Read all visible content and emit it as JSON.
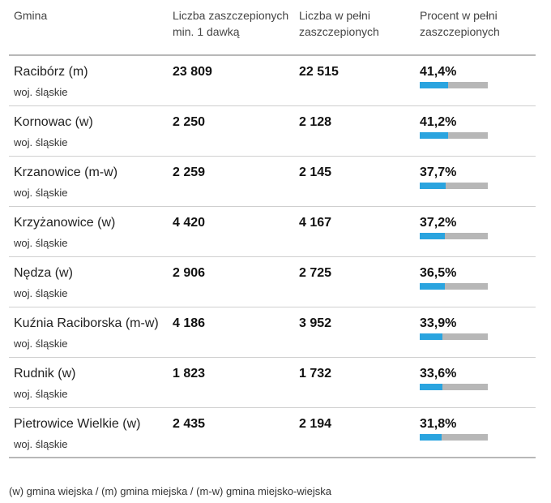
{
  "table": {
    "headers": {
      "gmina": "Gmina",
      "dose1": "Liczba zaszczepionych min. 1 dawką",
      "full": "Liczba w pełni zaszczepionych",
      "percent": "Procent w pełni zaszczepionych"
    },
    "rows": [
      {
        "name": "Racibórz (m)",
        "region": "woj. śląskie",
        "dose1": "23 809",
        "full": "22 515",
        "percent": "41,4%",
        "percent_value": 41.4
      },
      {
        "name": "Kornowac (w)",
        "region": "woj. śląskie",
        "dose1": "2 250",
        "full": "2 128",
        "percent": "41,2%",
        "percent_value": 41.2
      },
      {
        "name": "Krzanowice (m-w)",
        "region": "woj. śląskie",
        "dose1": "2 259",
        "full": "2 145",
        "percent": "37,7%",
        "percent_value": 37.7
      },
      {
        "name": "Krzyżanowice (w)",
        "region": "woj. śląskie",
        "dose1": "4 420",
        "full": "4 167",
        "percent": "37,2%",
        "percent_value": 37.2
      },
      {
        "name": "Nędza (w)",
        "region": "woj. śląskie",
        "dose1": "2 906",
        "full": "2 725",
        "percent": "36,5%",
        "percent_value": 36.5
      },
      {
        "name": "Kuźnia Raciborska (m-w)",
        "region": "woj. śląskie",
        "dose1": "4 186",
        "full": "3 952",
        "percent": "33,9%",
        "percent_value": 33.9
      },
      {
        "name": "Rudnik (w)",
        "region": "woj. śląskie",
        "dose1": "1 823",
        "full": "1 732",
        "percent": "33,6%",
        "percent_value": 33.6
      },
      {
        "name": "Pietrowice Wielkie (w)",
        "region": "woj. śląskie",
        "dose1": "2 435",
        "full": "2 194",
        "percent": "31,8%",
        "percent_value": 31.8
      }
    ]
  },
  "footnote": "(w) gmina wiejska / (m) gmina miejska / (m-w) gmina miejsko-wiejska",
  "colors": {
    "bar_fill": "#2aa4df",
    "bar_track": "#b7b7b7"
  }
}
